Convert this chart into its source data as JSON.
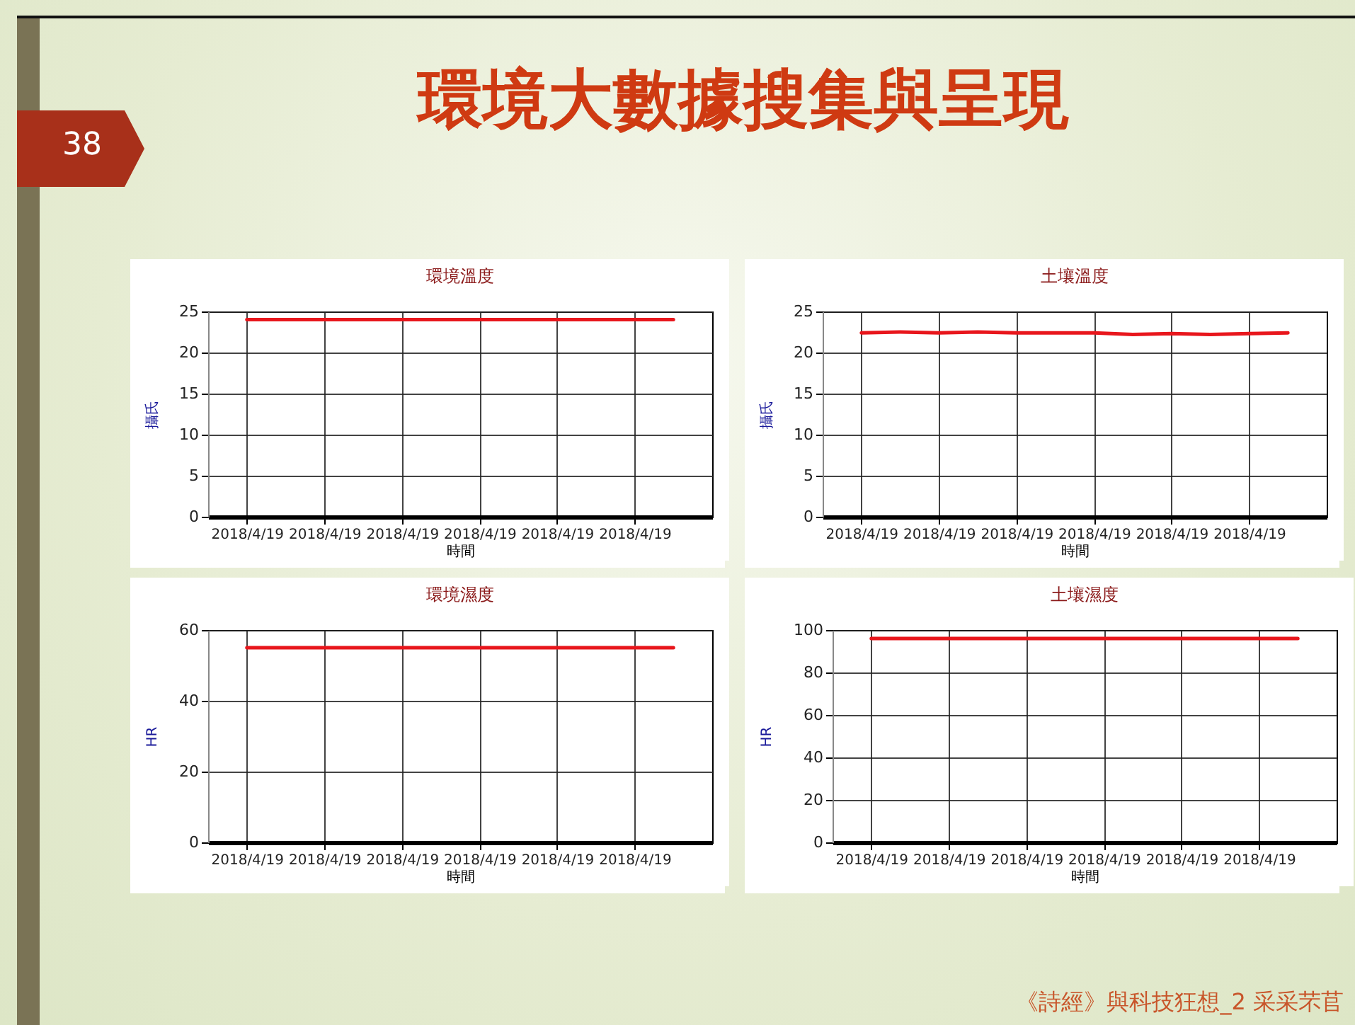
{
  "chart_data": [
    {
      "type": "other",
      "title": "環境大數據搜集與呈現",
      "annotations": [
        "38",
        "《詩經》與科技狂想_2 采采芣苢"
      ]
    },
    {
      "type": "line",
      "title": "環境溫度",
      "xlabel": "時間",
      "ylabel": "攝氏",
      "categories": [
        "2018/4/19",
        null,
        "2018/4/19",
        null,
        "2018/4/19",
        null,
        "2018/4/19",
        null,
        "2018/4/19",
        null,
        "2018/4/19",
        null
      ],
      "series": [
        {
          "color": "#e8161c",
          "values": [
            24,
            24,
            24,
            24,
            24,
            24,
            24,
            24,
            24,
            24,
            24,
            24
          ]
        }
      ],
      "ylim": [
        0,
        25
      ],
      "yticks": [
        0,
        5,
        10,
        15,
        20,
        25
      ],
      "grid": true
    },
    {
      "type": "line",
      "title": "土壤溫度",
      "xlabel": "時間",
      "ylabel": "攝氏",
      "categories": [
        "2018/4/19",
        null,
        "2018/4/19",
        null,
        "2018/4/19",
        null,
        "2018/4/19",
        null,
        "2018/4/19",
        null,
        "2018/4/19",
        null
      ],
      "series": [
        {
          "color": "#e8161c",
          "values": [
            22.4,
            22.5,
            22.4,
            22.5,
            22.4,
            22.4,
            22.4,
            22.2,
            22.3,
            22.2,
            22.3,
            22.4
          ]
        }
      ],
      "ylim": [
        0,
        25
      ],
      "yticks": [
        0,
        5,
        10,
        15,
        20,
        25
      ],
      "grid": true
    },
    {
      "type": "line",
      "title": "環境濕度",
      "xlabel": "時間",
      "ylabel": "HR",
      "categories": [
        "2018/4/19",
        null,
        "2018/4/19",
        null,
        "2018/4/19",
        null,
        "2018/4/19",
        null,
        "2018/4/19",
        null,
        "2018/4/19",
        null
      ],
      "series": [
        {
          "color": "#e8161c",
          "values": [
            55,
            55,
            55,
            55,
            55,
            55,
            55,
            55,
            55,
            55,
            55,
            55
          ]
        }
      ],
      "ylim": [
        0,
        60
      ],
      "yticks": [
        0,
        20,
        40,
        60
      ],
      "grid": true
    },
    {
      "type": "line",
      "title": "土壤濕度",
      "xlabel": "時間",
      "ylabel": "HR",
      "categories": [
        "2018/4/19",
        null,
        "2018/4/19",
        null,
        "2018/4/19",
        null,
        "2018/4/19",
        null,
        "2018/4/19",
        null,
        "2018/4/19",
        null
      ],
      "series": [
        {
          "color": "#e8161c",
          "values": [
            96,
            96,
            96,
            96,
            96,
            96,
            96,
            96,
            96,
            96,
            96,
            96
          ]
        }
      ],
      "ylim": [
        0,
        100
      ],
      "yticks": [
        0,
        20,
        40,
        60,
        80,
        100
      ],
      "grid": true
    }
  ]
}
